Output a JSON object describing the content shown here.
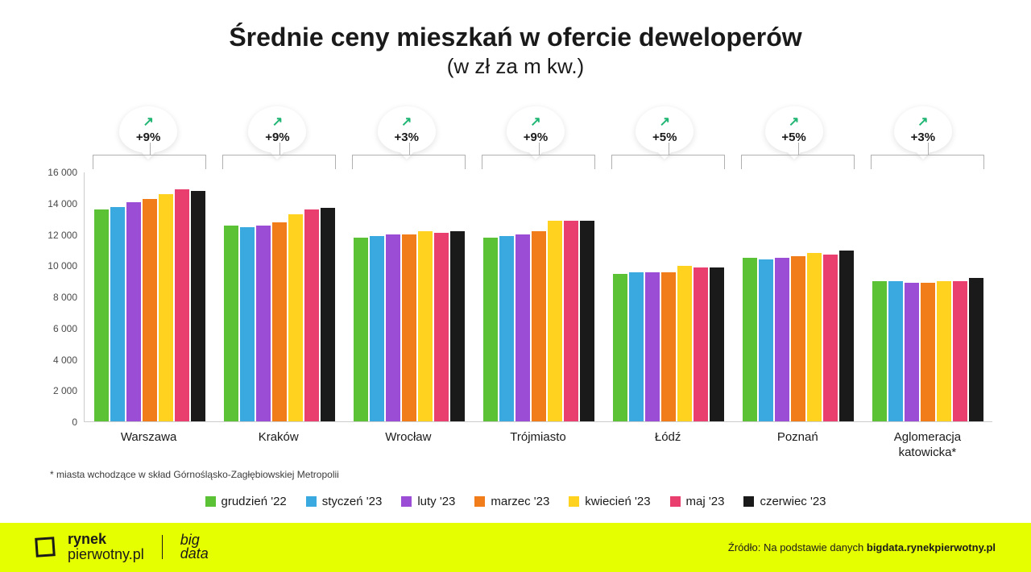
{
  "title": "Średnie ceny mieszkań w ofercie deweloperów",
  "subtitle": "(w zł za m kw.)",
  "chart": {
    "type": "bar",
    "ylim": [
      0,
      16000
    ],
    "ytick_step": 2000,
    "yticks": [
      "0",
      "2 000",
      "4 000",
      "6 000",
      "8 000",
      "10 000",
      "12 000",
      "14 000",
      "16 000"
    ],
    "series": [
      {
        "label": "grudzień '22",
        "color": "#5bc236"
      },
      {
        "label": "styczeń '23",
        "color": "#39a9e0"
      },
      {
        "label": "luty '23",
        "color": "#9b4dd6"
      },
      {
        "label": "marzec '23",
        "color": "#f07d1a"
      },
      {
        "label": "kwiecień '23",
        "color": "#ffd21f"
      },
      {
        "label": "maj '23",
        "color": "#e83f6f"
      },
      {
        "label": "czerwiec '23",
        "color": "#1a1a1a"
      }
    ],
    "categories": [
      {
        "label": "Warszawa",
        "change": "+9%",
        "values": [
          13600,
          13800,
          14100,
          14300,
          14600,
          14900,
          14800
        ]
      },
      {
        "label": "Kraków",
        "change": "+9%",
        "values": [
          12600,
          12500,
          12600,
          12800,
          13300,
          13600,
          13700
        ]
      },
      {
        "label": "Wrocław",
        "change": "+3%",
        "values": [
          11800,
          11900,
          12000,
          12000,
          12200,
          12100,
          12200
        ]
      },
      {
        "label": "Trójmiasto",
        "change": "+9%",
        "values": [
          11800,
          11900,
          12000,
          12200,
          12900,
          12900,
          12900
        ]
      },
      {
        "label": "Łódź",
        "change": "+5%",
        "values": [
          9500,
          9600,
          9600,
          9600,
          10000,
          9900,
          9900
        ]
      },
      {
        "label": "Poznań",
        "change": "+5%",
        "values": [
          10500,
          10400,
          10500,
          10600,
          10800,
          10700,
          11000
        ]
      },
      {
        "label": "Aglomeracja\nkatowicka*",
        "change": "+3%",
        "values": [
          9000,
          9000,
          8900,
          8900,
          9000,
          9000,
          9200
        ]
      }
    ],
    "bracket_color": "#b0b0b0",
    "arrow_color": "#1fb573",
    "background_color": "#ffffff",
    "title_fontsize": 32,
    "subtitle_fontsize": 26,
    "label_fontsize": 15,
    "tick_fontsize": 12
  },
  "footnote": "* miasta wchodzące w skład Górnośląsko-Zagłębiowskiej Metropolii",
  "footer": {
    "brand1_bold": "rynek",
    "brand1_rest": "pierwotny",
    "brand1_suffix": ".pl",
    "brand2_top": "big",
    "brand2_bot": "data",
    "source_prefix": "Źródło: Na podstawie danych ",
    "source_bold": "bigdata.rynekpierwotny.pl",
    "bg_color": "#e6ff00"
  }
}
